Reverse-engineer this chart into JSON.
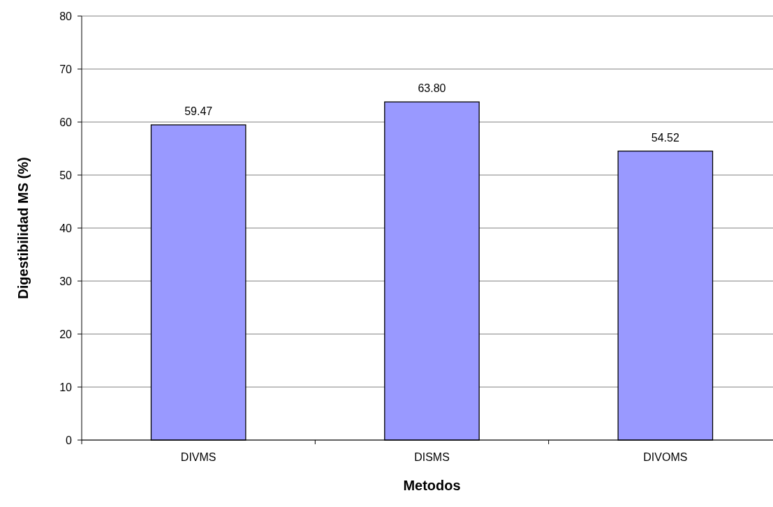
{
  "chart_data": {
    "type": "bar",
    "xlabel": "Metodos",
    "ylabel": "Digestibilidad MS (%)",
    "categories": [
      "DIVMS",
      "DISMS",
      "DIVOMS"
    ],
    "values": [
      59.47,
      63.8,
      54.52
    ],
    "value_labels": [
      "59.47",
      "63.80",
      "54.52"
    ],
    "color": "#9999ff",
    "ylim": [
      0,
      80
    ],
    "yticks": [
      0,
      10,
      20,
      30,
      40,
      50,
      60,
      70,
      80
    ],
    "grid": "y"
  }
}
